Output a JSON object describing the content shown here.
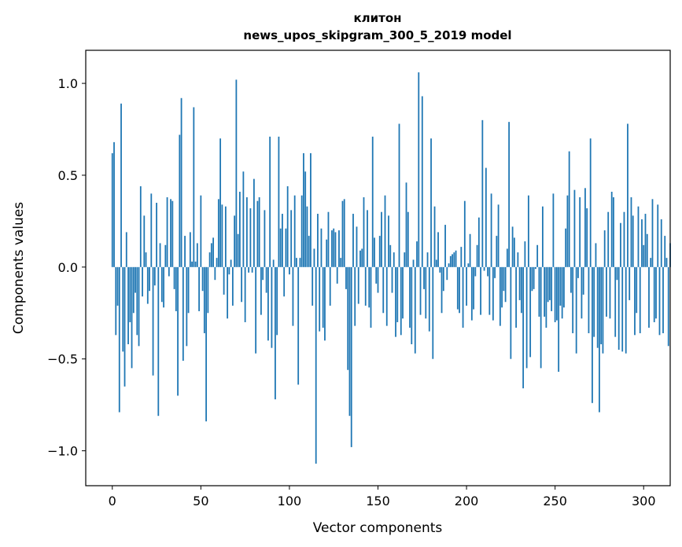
{
  "chart_data": {
    "type": "bar",
    "title_line1": "клитон",
    "title_line2": "news_upos_skipgram_300_5_2019 model",
    "xlabel": "Vector components",
    "ylabel": "Components values",
    "xlim": [
      -15,
      315
    ],
    "ylim": [
      -1.19,
      1.18
    ],
    "xticks": [
      0,
      50,
      100,
      150,
      200,
      250,
      300
    ],
    "xtick_labels": [
      "0",
      "50",
      "100",
      "150",
      "200",
      "250",
      "300"
    ],
    "yticks": [
      -1.0,
      -0.5,
      0.0,
      0.5,
      1.0
    ],
    "ytick_labels": [
      "−1.0",
      "−0.5",
      "0.0",
      "0.5",
      "1.0"
    ],
    "bar_color": "#1f77b4",
    "values": [
      0.62,
      0.68,
      -0.37,
      -0.21,
      -0.79,
      0.89,
      -0.46,
      -0.65,
      0.19,
      -0.42,
      -0.3,
      -0.55,
      -0.25,
      -0.14,
      -0.37,
      -0.43,
      0.44,
      -0.16,
      0.28,
      0.08,
      -0.2,
      -0.13,
      0.4,
      -0.59,
      -0.1,
      0.35,
      -0.81,
      0.13,
      -0.19,
      -0.22,
      0.12,
      0.38,
      -0.05,
      0.37,
      0.36,
      -0.12,
      -0.24,
      -0.7,
      0.72,
      0.92,
      -0.51,
      0.17,
      -0.43,
      -0.25,
      0.19,
      0.03,
      0.87,
      0.03,
      0.13,
      -0.24,
      0.39,
      -0.13,
      -0.36,
      -0.84,
      -0.25,
      0.08,
      0.13,
      0.16,
      -0.07,
      0.05,
      0.37,
      0.7,
      0.34,
      -0.15,
      0.33,
      -0.28,
      -0.04,
      0.04,
      -0.21,
      0.28,
      1.02,
      0.18,
      0.41,
      -0.19,
      0.52,
      -0.3,
      0.38,
      -0.03,
      0.32,
      -0.03,
      0.48,
      -0.47,
      0.36,
      0.38,
      -0.26,
      -0.07,
      0.31,
      -0.14,
      -0.4,
      0.71,
      -0.44,
      0.04,
      -0.72,
      -0.37,
      0.71,
      0.21,
      0.29,
      -0.16,
      0.21,
      0.44,
      -0.04,
      0.31,
      -0.32,
      0.39,
      0.05,
      -0.64,
      0.05,
      0.39,
      0.62,
      0.52,
      0.33,
      0.17,
      0.62,
      -0.21,
      0.1,
      -1.07,
      0.29,
      -0.35,
      0.21,
      -0.33,
      -0.4,
      0.15,
      0.3,
      -0.21,
      0.2,
      0.21,
      0.19,
      -0.09,
      0.2,
      0.05,
      0.36,
      0.37,
      -0.12,
      -0.56,
      -0.81,
      -0.98,
      0.29,
      -0.32,
      0.22,
      -0.2,
      0.09,
      0.1,
      0.38,
      -0.21,
      0.31,
      -0.22,
      -0.33,
      0.71,
      0.16,
      -0.09,
      -0.14,
      0.17,
      0.3,
      -0.25,
      0.39,
      -0.32,
      0.28,
      0.12,
      -0.14,
      0.08,
      -0.38,
      -0.3,
      0.78,
      -0.37,
      -0.28,
      0.08,
      0.46,
      0.3,
      -0.33,
      -0.42,
      0.04,
      -0.47,
      0.14,
      1.06,
      -0.26,
      0.93,
      -0.12,
      -0.28,
      0.08,
      -0.35,
      0.7,
      -0.5,
      0.33,
      0.04,
      0.19,
      -0.03,
      -0.25,
      -0.13,
      0.23,
      -0.07,
      0.02,
      0.06,
      0.07,
      0.08,
      0.09,
      -0.23,
      -0.25,
      0.11,
      -0.33,
      0.36,
      -0.21,
      0.02,
      0.18,
      -0.29,
      -0.23,
      -0.05,
      0.12,
      0.27,
      -0.26,
      0.8,
      -0.02,
      0.54,
      -0.05,
      -0.26,
      0.4,
      -0.29,
      -0.06,
      0.17,
      0.34,
      -0.32,
      -0.22,
      -0.13,
      -0.19,
      0.1,
      0.79,
      -0.5,
      0.22,
      0.16,
      -0.33,
      0.08,
      -0.18,
      -0.25,
      -0.66,
      0.14,
      -0.55,
      0.39,
      -0.49,
      -0.13,
      -0.12,
      -0.01,
      0.12,
      -0.27,
      -0.55,
      0.33,
      -0.27,
      -0.33,
      -0.19,
      -0.18,
      -0.24,
      0.4,
      -0.3,
      -0.29,
      -0.57,
      -0.21,
      -0.28,
      -0.22,
      0.21,
      0.39,
      0.63,
      -0.14,
      -0.36,
      0.42,
      -0.47,
      -0.06,
      0.38,
      -0.28,
      -0.15,
      0.43,
      0.32,
      -0.36,
      0.7,
      -0.74,
      -0.38,
      0.13,
      -0.44,
      -0.79,
      -0.42,
      -0.47,
      0.2,
      -0.27,
      0.3,
      -0.28,
      0.41,
      0.38,
      -0.38,
      -0.07,
      -0.45,
      0.24,
      -0.46,
      0.3,
      -0.47,
      0.78,
      -0.18,
      0.38,
      0.28,
      -0.37,
      -0.25,
      0.33,
      -0.36,
      0.26,
      0.12,
      0.29,
      0.18,
      -0.33,
      0.05,
      0.37,
      -0.3,
      -0.28,
      0.34,
      -0.37,
      0.26,
      -0.36,
      0.17,
      0.05,
      -0.43,
      0.13
    ]
  }
}
